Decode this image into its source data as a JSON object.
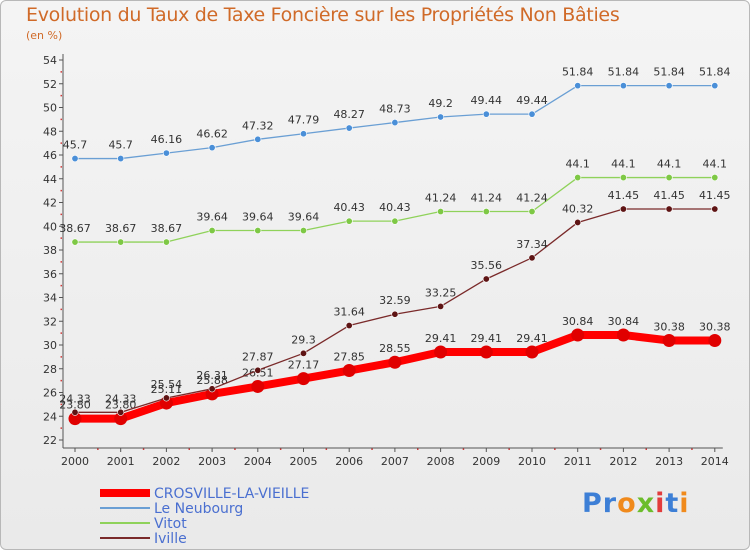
{
  "title": "Evolution du Taux de Taxe Foncière sur les Propriétés Non Bâties",
  "subtitle": "(en %)",
  "logo": {
    "letters": [
      "P",
      "r",
      "o",
      "x",
      "i",
      "t",
      "i"
    ],
    "colors": [
      "#3d7fd6",
      "#3d7fd6",
      "#f08a1c",
      "#6cbd2c",
      "#e23c3c",
      "#3d7fd6",
      "#f08a1c"
    ]
  },
  "chart_data": {
    "type": "line",
    "x": [
      "2000",
      "2001",
      "2002",
      "2003",
      "2004",
      "2005",
      "2006",
      "2007",
      "2008",
      "2009",
      "2010",
      "2011",
      "2012",
      "2013",
      "2014"
    ],
    "ylim": [
      22,
      54
    ],
    "yticks": [
      "22",
      "24",
      "26",
      "28",
      "30",
      "32",
      "34",
      "36",
      "38",
      "40",
      "42",
      "44",
      "46",
      "48",
      "50",
      "52",
      "54"
    ],
    "grid": false,
    "legend_position": "bottom-left",
    "series": [
      {
        "name": "CROSVILLE-LA-VIEILLE",
        "color": "#ff0000",
        "marker": "#e00000",
        "width": 8,
        "values": [
          23.8,
          23.8,
          25.11,
          25.88,
          26.51,
          27.17,
          27.85,
          28.55,
          29.41,
          29.41,
          29.41,
          30.84,
          30.84,
          30.38,
          30.38
        ],
        "labels": [
          "23.80",
          "23.80",
          "25.11",
          "25.88",
          "26.51",
          "27.17",
          "27.85",
          "28.55",
          "29.41",
          "29.41",
          "29.41",
          "30.84",
          "30.84",
          "30.38",
          "30.38"
        ]
      },
      {
        "name": "Le Neubourg",
        "color": "#6a9fd4",
        "marker": "#4a8fd8",
        "width": 1.3,
        "values": [
          45.7,
          45.7,
          46.16,
          46.62,
          47.32,
          47.79,
          48.27,
          48.73,
          49.2,
          49.44,
          49.44,
          51.84,
          51.84,
          51.84,
          51.84
        ],
        "labels": [
          "45.7",
          "45.7",
          "46.16",
          "46.62",
          "47.32",
          "47.79",
          "48.27",
          "48.73",
          "49.2",
          "49.44",
          "49.44",
          "51.84",
          "51.84",
          "51.84",
          "51.84"
        ]
      },
      {
        "name": "Vitot",
        "color": "#8fd25a",
        "marker": "#7ec845",
        "width": 1.3,
        "values": [
          38.67,
          38.67,
          38.67,
          39.64,
          39.64,
          39.64,
          40.43,
          40.43,
          41.24,
          41.24,
          41.24,
          44.1,
          44.1,
          44.1,
          44.1
        ],
        "labels": [
          "38.67",
          "38.67",
          "38.67",
          "39.64",
          "39.64",
          "39.64",
          "40.43",
          "40.43",
          "41.24",
          "41.24",
          "41.24",
          "44.1",
          "44.1",
          "44.1",
          "44.1"
        ]
      },
      {
        "name": "Iville",
        "color": "#7a2a2a",
        "marker": "#5e1414",
        "width": 1.3,
        "values": [
          24.33,
          24.33,
          25.54,
          26.31,
          27.87,
          29.3,
          31.64,
          32.59,
          33.25,
          35.56,
          37.34,
          40.32,
          41.45,
          41.45,
          41.45
        ],
        "labels": [
          "24.33",
          "24.33",
          "25.54",
          "26.31",
          "27.87",
          "29.3",
          "31.64",
          "32.59",
          "33.25",
          "35.56",
          "37.34",
          "40.32",
          "41.45",
          "41.45",
          "41.45"
        ]
      }
    ]
  }
}
